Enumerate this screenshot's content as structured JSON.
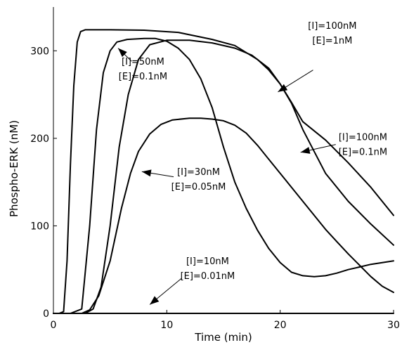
{
  "chart_data": {
    "type": "line",
    "title": "",
    "xlabel": "Time (min)",
    "ylabel": "Phospho-ERK (nM)",
    "xlim": [
      0,
      30
    ],
    "ylim": [
      0,
      350
    ],
    "xticks": [
      0,
      10,
      20,
      30
    ],
    "yticks": [
      0,
      100,
      200,
      300
    ],
    "grid": false,
    "series": [
      {
        "name": "",
        "line_width": 3.4,
        "points": [
          [
            0,
            0
          ],
          [
            0.5,
            0
          ],
          [
            0.9,
            2
          ],
          [
            1.2,
            60
          ],
          [
            1.5,
            170
          ],
          [
            1.8,
            260
          ],
          [
            2.1,
            310
          ],
          [
            2.4,
            322
          ],
          [
            2.8,
            324
          ],
          [
            5,
            324
          ],
          [
            8,
            323.5
          ],
          [
            11,
            321
          ],
          [
            14,
            313
          ],
          [
            16,
            306
          ],
          [
            18,
            290
          ],
          [
            19,
            278
          ],
          [
            20,
            262
          ],
          [
            21,
            241
          ],
          [
            22,
            219
          ],
          [
            24,
            198
          ],
          [
            26,
            172
          ],
          [
            28,
            144
          ],
          [
            30,
            112
          ]
        ]
      },
      {
        "name": "",
        "line_width": 2,
        "points": [
          [
            0,
            0
          ],
          [
            1.5,
            0
          ],
          [
            2.5,
            5
          ],
          [
            3.2,
            100
          ],
          [
            3.8,
            210
          ],
          [
            4.4,
            275
          ],
          [
            5,
            300
          ],
          [
            5.6,
            310
          ],
          [
            6.5,
            313
          ],
          [
            8,
            314
          ],
          [
            9,
            314
          ],
          [
            10,
            311
          ],
          [
            11,
            303
          ],
          [
            12,
            290
          ],
          [
            13,
            268
          ],
          [
            14,
            235
          ],
          [
            15,
            190
          ],
          [
            16,
            150
          ],
          [
            17,
            120
          ],
          [
            18,
            95
          ],
          [
            19,
            74
          ],
          [
            20,
            58
          ],
          [
            21,
            47
          ],
          [
            22,
            43
          ],
          [
            23,
            42
          ],
          [
            24,
            43
          ],
          [
            25,
            46
          ],
          [
            26,
            50
          ],
          [
            27,
            53
          ],
          [
            28,
            56
          ],
          [
            29,
            58
          ],
          [
            30,
            60
          ]
        ]
      },
      {
        "name": "",
        "line_width": 2,
        "points": [
          [
            0,
            0
          ],
          [
            2.5,
            0
          ],
          [
            3.2,
            4
          ],
          [
            4,
            20
          ],
          [
            5,
            60
          ],
          [
            6,
            120
          ],
          [
            6.8,
            160
          ],
          [
            7.5,
            185
          ],
          [
            8.5,
            205
          ],
          [
            9.5,
            216
          ],
          [
            10.5,
            221
          ],
          [
            12,
            223
          ],
          [
            13,
            223
          ],
          [
            14,
            222
          ],
          [
            15,
            220
          ],
          [
            16,
            215
          ],
          [
            17,
            206
          ],
          [
            18,
            192
          ],
          [
            19,
            176
          ],
          [
            20,
            160
          ],
          [
            21,
            144
          ],
          [
            22,
            128
          ],
          [
            23,
            112
          ],
          [
            24,
            96
          ],
          [
            25,
            82
          ],
          [
            26,
            68
          ],
          [
            27,
            55
          ],
          [
            28,
            42
          ],
          [
            29,
            31
          ],
          [
            30,
            24
          ]
        ]
      },
      {
        "name": "",
        "line_width": 2,
        "points": [
          [
            0,
            0
          ],
          [
            2.8,
            0
          ],
          [
            3.5,
            5
          ],
          [
            4.2,
            30
          ],
          [
            5,
            100
          ],
          [
            5.8,
            190
          ],
          [
            6.6,
            250
          ],
          [
            7.5,
            290
          ],
          [
            8.5,
            307
          ],
          [
            10,
            312
          ],
          [
            12,
            312
          ],
          [
            14,
            309
          ],
          [
            16,
            303
          ],
          [
            17.5,
            295
          ],
          [
            19,
            280
          ],
          [
            20,
            262
          ],
          [
            21,
            240
          ],
          [
            22,
            210
          ],
          [
            24,
            160
          ],
          [
            26,
            128
          ],
          [
            28,
            102
          ],
          [
            30,
            78
          ]
        ]
      },
      {
        "name": "",
        "line_width": 3.4,
        "points": [
          [
            0,
            0
          ],
          [
            30,
            0
          ]
        ]
      }
    ],
    "annotations": [
      {
        "lines": [
          "[I]=100nM",
          "[E]=1nM"
        ],
        "text_x": 24.6,
        "text_y": 325,
        "arrow_from": [
          22.9,
          278
        ],
        "arrow_to": [
          19.8,
          253
        ]
      },
      {
        "lines": [
          "[I]=50nM",
          "[E]=0.1nM"
        ],
        "text_x": 7.9,
        "text_y": 284,
        "arrow_from": [
          6.9,
          288
        ],
        "arrow_to": [
          5.7,
          303
        ]
      },
      {
        "lines": [
          "[I]=100nM",
          "[E]=0.1nM"
        ],
        "text_x": 27.3,
        "text_y": 198,
        "arrow_from": [
          24.9,
          193
        ],
        "arrow_to": [
          21.8,
          184
        ]
      },
      {
        "lines": [
          "[I]=30nM",
          "[E]=0.05nM"
        ],
        "text_x": 12.8,
        "text_y": 158,
        "arrow_from": [
          10.6,
          156
        ],
        "arrow_to": [
          7.8,
          162
        ]
      },
      {
        "lines": [
          "[I]=10nM",
          "[E]=0.01nM"
        ],
        "text_x": 13.6,
        "text_y": 56,
        "arrow_from": [
          11.3,
          40
        ],
        "arrow_to": [
          8.5,
          10
        ]
      }
    ]
  }
}
